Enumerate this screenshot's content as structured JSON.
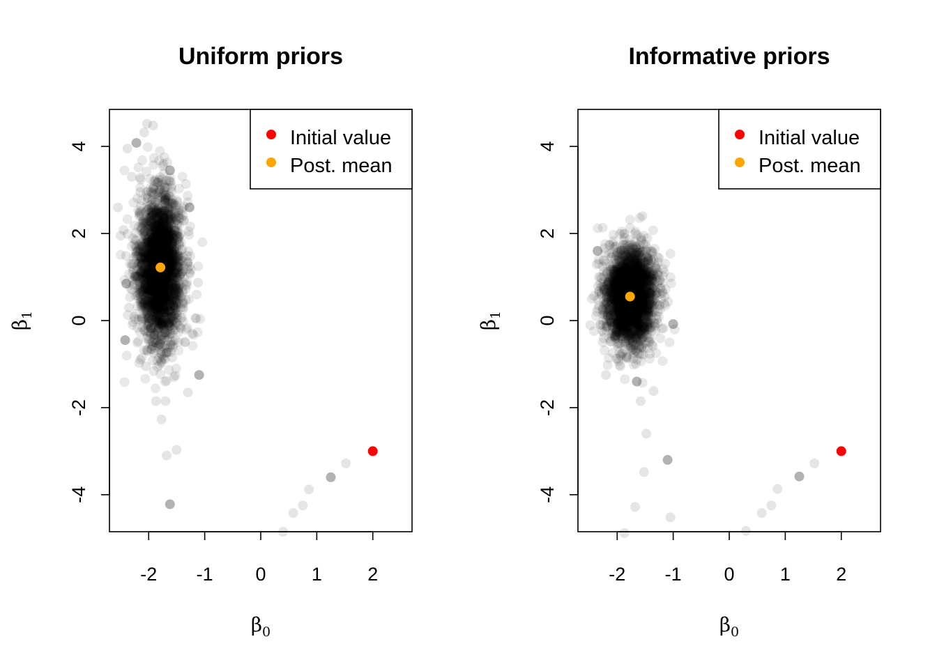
{
  "chart_data": [
    {
      "type": "scatter",
      "title": "Uniform priors",
      "xlabel": "β0",
      "ylabel": "β1",
      "xlim": [
        -2.7,
        2.7
      ],
      "ylim": [
        -4.85,
        4.85
      ],
      "xticks": [
        -2,
        -1,
        0,
        1,
        2
      ],
      "yticks": [
        -4,
        -2,
        0,
        2,
        4
      ],
      "grid": false,
      "legend_position": "top-right",
      "legend": [
        {
          "label": "Initial value",
          "color": "#ff0000"
        },
        {
          "label": "Post. mean",
          "color": "#ffa500"
        }
      ],
      "cloud": {
        "center_x": -1.8,
        "center_y": 1.2,
        "spread_x": 0.2,
        "spread_y": 0.85
      },
      "series": [
        {
          "name": "Initial value",
          "color": "#ff0000",
          "points": [
            [
              2.0,
              -3.0
            ]
          ]
        },
        {
          "name": "Post. mean",
          "color": "#ffa500",
          "points": [
            [
              -1.79,
              1.22
            ]
          ]
        },
        {
          "name": "",
          "color": "#000000",
          "points": [
            [
              1.52,
              -3.28
            ],
            [
              1.25,
              -3.6
            ],
            [
              0.86,
              -3.88
            ],
            [
              0.75,
              -4.25
            ],
            [
              0.58,
              -4.42
            ],
            [
              0.4,
              -4.85
            ],
            [
              -1.62,
              -4.22
            ],
            [
              -1.5,
              -2.97
            ],
            [
              -1.68,
              -3.1
            ],
            [
              -1.77,
              -2.27
            ],
            [
              -1.55,
              -1.3
            ],
            [
              -1.1,
              -1.25
            ],
            [
              -1.3,
              -1.65
            ],
            [
              -1.87,
              -1.85
            ],
            [
              -1.7,
              -1.85
            ],
            [
              -1.58,
              -0.85
            ],
            [
              -2.42,
              -0.45
            ],
            [
              -2.55,
              2.6
            ],
            [
              -2.45,
              2.08
            ],
            [
              -2.5,
              1.95
            ],
            [
              -2.38,
              3.95
            ],
            [
              -2.22,
              4.08
            ],
            [
              -2.08,
              4.32
            ],
            [
              -2.03,
              4.52
            ],
            [
              -1.92,
              4.48
            ],
            [
              -2.3,
              3.3
            ],
            [
              -1.27,
              2.6
            ],
            [
              -1.12,
              0.87
            ],
            [
              -1.15,
              0.05
            ],
            [
              -1.22,
              -0.3
            ],
            [
              -2.3,
              1.3
            ],
            [
              -2.4,
              0.85
            ],
            [
              -2.35,
              0.3
            ],
            [
              -2.15,
              -0.9
            ],
            [
              -2.05,
              -1.05
            ],
            [
              -1.75,
              3.55
            ],
            [
              -1.62,
              3.45
            ],
            [
              -2.15,
              2.95
            ]
          ]
        }
      ]
    },
    {
      "type": "scatter",
      "title": "Informative priors",
      "xlabel": "β0",
      "ylabel": "β1",
      "xlim": [
        -2.7,
        2.7
      ],
      "ylim": [
        -4.85,
        4.85
      ],
      "xticks": [
        -2,
        -1,
        0,
        1,
        2
      ],
      "yticks": [
        -4,
        -2,
        0,
        2,
        4
      ],
      "grid": false,
      "legend_position": "top-right",
      "legend": [
        {
          "label": "Initial value",
          "color": "#ff0000"
        },
        {
          "label": "Post. mean",
          "color": "#ffa500"
        }
      ],
      "cloud": {
        "center_x": -1.77,
        "center_y": 0.55,
        "spread_x": 0.22,
        "spread_y": 0.55
      },
      "series": [
        {
          "name": "Initial value",
          "color": "#ff0000",
          "points": [
            [
              2.0,
              -3.0
            ]
          ]
        },
        {
          "name": "Post. mean",
          "color": "#ffa500",
          "points": [
            [
              -1.77,
              0.55
            ]
          ]
        },
        {
          "name": "",
          "color": "#000000",
          "points": [
            [
              1.52,
              -3.28
            ],
            [
              1.25,
              -3.58
            ],
            [
              0.86,
              -3.87
            ],
            [
              0.75,
              -4.25
            ],
            [
              0.58,
              -4.42
            ],
            [
              0.3,
              -4.83
            ],
            [
              -1.1,
              -3.2
            ],
            [
              -1.52,
              -3.48
            ],
            [
              -1.48,
              -2.6
            ],
            [
              -1.58,
              -1.85
            ],
            [
              -1.35,
              -1.62
            ],
            [
              -1.0,
              -0.08
            ],
            [
              -1.05,
              -4.52
            ],
            [
              -1.68,
              -4.28
            ],
            [
              -1.87,
              -4.88
            ],
            [
              -2.45,
              0.5
            ],
            [
              -2.35,
              1.6
            ],
            [
              -1.55,
              2.4
            ],
            [
              -1.3,
              1.2
            ],
            [
              -1.15,
              0.55
            ],
            [
              -2.2,
              -1.25
            ],
            [
              -1.65,
              -1.4
            ],
            [
              -2.3,
              0.85
            ]
          ]
        }
      ]
    }
  ]
}
